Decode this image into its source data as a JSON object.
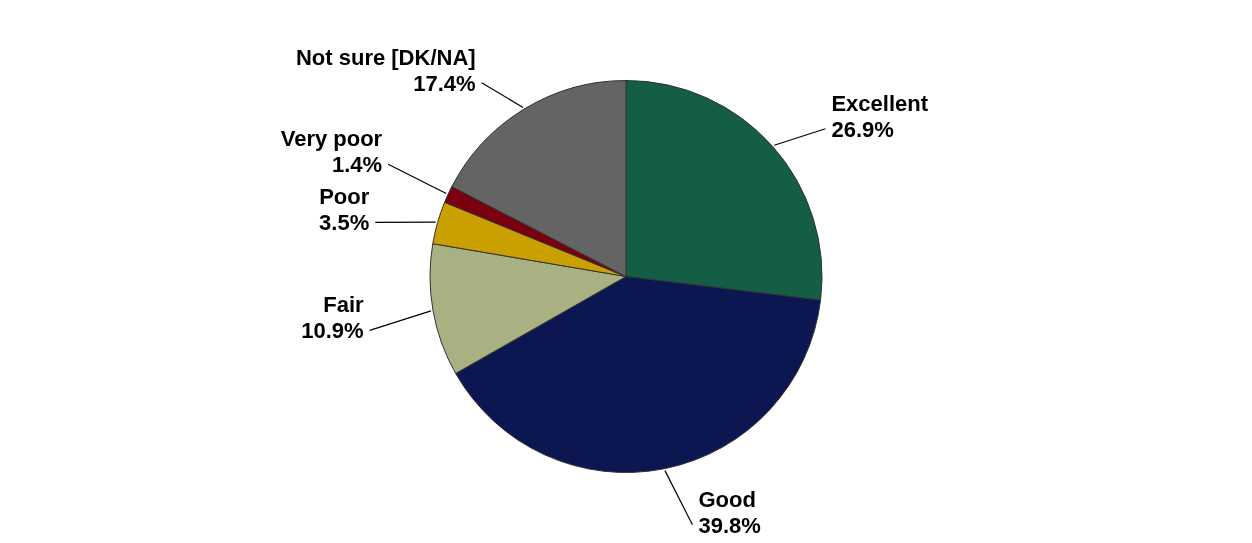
{
  "chart_data": {
    "type": "pie",
    "categories": [
      "Excellent",
      "Good",
      "Fair",
      "Poor",
      "Very poor",
      "Not sure [DK/NA]"
    ],
    "values": [
      26.9,
      39.8,
      10.9,
      3.5,
      1.4,
      17.4
    ],
    "value_labels": [
      "26.9%",
      "39.8%",
      "10.9%",
      "3.5%",
      "1.4%",
      "17.4%"
    ],
    "colors": [
      "#135e45",
      "#0c1650",
      "#a9b082",
      "#c9a000",
      "#7a0010",
      "#646464"
    ],
    "legend": false
  }
}
